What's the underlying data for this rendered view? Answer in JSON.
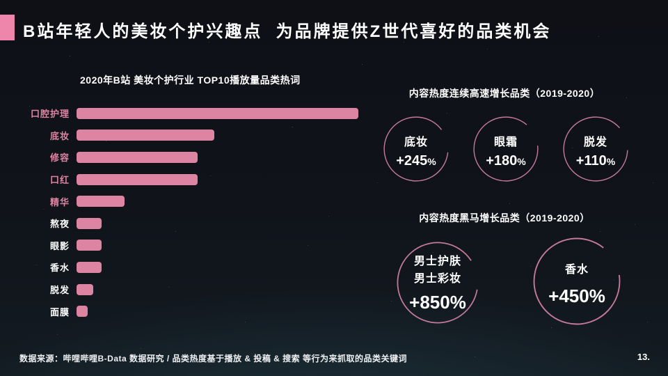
{
  "slide": {
    "title": "B站年轻人的美妆个护兴趣点  为品牌提供Z世代喜好的品类机会",
    "source_note": "数据来源：哔哩哔哩B-Data 数据研究 / 品类热度基于播放 & 投稿 & 搜索 等行为来抓取的品类关键词",
    "page_number": "13."
  },
  "colors": {
    "accent_pink": "#ee86ac",
    "bar_pink": "#dd84a2",
    "circle_stroke_pink": "#c47a9c",
    "background_top": "#0e1016",
    "background_bottom": "#131b22",
    "text_white": "#ffffff"
  },
  "chart_data": [
    {
      "type": "bar",
      "orientation": "horizontal",
      "title": "2020年B站 美妆个护行业 TOP10播放量品类热词",
      "categories": [
        "口腔护理",
        "底妆",
        "修容",
        "口红",
        "精华",
        "熬夜",
        "眼影",
        "香水",
        "脱发",
        "面膜"
      ],
      "values": [
        100,
        49,
        43,
        43,
        17,
        9,
        9,
        9,
        6,
        4
      ],
      "value_note": "相对播放量指数（图中无数值轴，按条形长度估算，最长条=100）",
      "highlighted_categories": [
        "口腔护理",
        "底妆",
        "修容",
        "口红",
        "精华"
      ],
      "xlabel": "",
      "ylabel": "",
      "grid": false,
      "legend": false
    },
    {
      "type": "kpi",
      "title": "内容热度连续高速增长品类（2019-2020）",
      "items": [
        {
          "label": "底妆",
          "value": "+245",
          "suffix": "%"
        },
        {
          "label": "眼霜",
          "value": "+180",
          "suffix": "%"
        },
        {
          "label": "脱发",
          "value": "+110",
          "suffix": "%"
        }
      ]
    },
    {
      "type": "kpi",
      "title": "内容热度黑马增长品类（2019-2020）",
      "items": [
        {
          "labels": [
            "男士护肤",
            "男士彩妆"
          ],
          "value": "+850%"
        },
        {
          "labels": [
            "香水"
          ],
          "value": "+450%"
        }
      ]
    }
  ]
}
